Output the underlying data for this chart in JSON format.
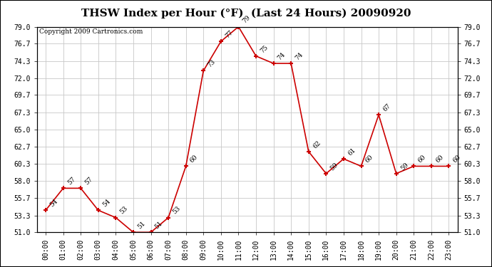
{
  "title": "THSW Index per Hour (°F)  (Last 24 Hours) 20090920",
  "copyright": "Copyright 2009 Cartronics.com",
  "hours": [
    "00:00",
    "01:00",
    "02:00",
    "03:00",
    "04:00",
    "05:00",
    "06:00",
    "07:00",
    "08:00",
    "09:00",
    "10:00",
    "11:00",
    "12:00",
    "13:00",
    "14:00",
    "15:00",
    "16:00",
    "17:00",
    "18:00",
    "19:00",
    "20:00",
    "21:00",
    "22:00",
    "23:00"
  ],
  "values": [
    54,
    57,
    57,
    54,
    53,
    51,
    51,
    53,
    60,
    73,
    77,
    79,
    75,
    74,
    74,
    62,
    59,
    61,
    60,
    67,
    59,
    60,
    60,
    60
  ],
  "ylim_min": 51.0,
  "ylim_max": 79.0,
  "yticks": [
    51.0,
    53.3,
    55.7,
    58.0,
    60.3,
    62.7,
    65.0,
    67.3,
    69.7,
    72.0,
    74.3,
    76.7,
    79.0
  ],
  "line_color": "#cc0000",
  "marker_color": "#cc0000",
  "bg_color": "#ffffff",
  "grid_color": "#c8c8c8",
  "title_fontsize": 11,
  "label_fontsize": 7,
  "annotation_fontsize": 6.5,
  "copyright_fontsize": 6.5
}
